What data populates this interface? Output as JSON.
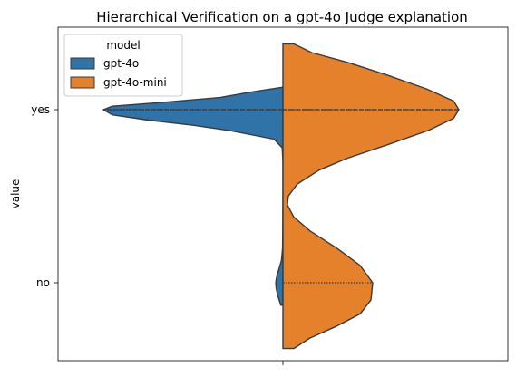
{
  "chart_data": {
    "type": "violin",
    "title": "Hierarchical Verification on a gpt-4o Judge explanation",
    "xlabel": "",
    "ylabel": "value",
    "categories": [
      "yes",
      "no"
    ],
    "split": true,
    "inner": "quartile",
    "legend": {
      "title": "model",
      "placement": "top-left",
      "entries": [
        {
          "name": "gpt-4o",
          "color": "#2f73a8"
        },
        {
          "name": "gpt-4o-mini",
          "color": "#e5812b"
        }
      ]
    },
    "series": [
      {
        "name": "gpt-4o",
        "side": "left",
        "color": "#2f73a8",
        "density": [
          {
            "v": -0.13,
            "w": 0.012
          },
          {
            "v": -0.07,
            "w": 0.03
          },
          {
            "v": -0.03,
            "w": 0.038
          },
          {
            "v": 0.0,
            "w": 0.04
          },
          {
            "v": 0.03,
            "w": 0.036
          },
          {
            "v": 0.07,
            "w": 0.025
          },
          {
            "v": 0.13,
            "w": 0.008
          },
          {
            "v": 0.2,
            "w": 0.002
          },
          {
            "v": 0.3,
            "w": 0.001
          },
          {
            "v": 0.5,
            "w": 0.0
          },
          {
            "v": 0.7,
            "w": 0.0
          },
          {
            "v": 0.78,
            "w": 0.004
          },
          {
            "v": 0.83,
            "w": 0.05
          },
          {
            "v": 0.88,
            "w": 0.3
          },
          {
            "v": 0.91,
            "w": 0.5
          },
          {
            "v": 0.94,
            "w": 0.75
          },
          {
            "v": 0.97,
            "w": 0.95
          },
          {
            "v": 1.0,
            "w": 1.0
          },
          {
            "v": 1.02,
            "w": 0.95
          },
          {
            "v": 1.04,
            "w": 0.7
          },
          {
            "v": 1.07,
            "w": 0.35
          },
          {
            "v": 1.1,
            "w": 0.19
          },
          {
            "v": 1.13,
            "w": 0.0
          }
        ],
        "quartiles": [
          1.0,
          1.0,
          1.0
        ]
      },
      {
        "name": "gpt-4o-mini",
        "side": "right",
        "color": "#e5812b",
        "density": [
          {
            "v": -0.38,
            "w": 0.0
          },
          {
            "v": -0.38,
            "w": 0.06
          },
          {
            "v": -0.32,
            "w": 0.15
          },
          {
            "v": -0.25,
            "w": 0.3
          },
          {
            "v": -0.18,
            "w": 0.43
          },
          {
            "v": -0.1,
            "w": 0.49
          },
          {
            "v": 0.0,
            "w": 0.5
          },
          {
            "v": 0.1,
            "w": 0.43
          },
          {
            "v": 0.2,
            "w": 0.3
          },
          {
            "v": 0.3,
            "w": 0.15
          },
          {
            "v": 0.38,
            "w": 0.06
          },
          {
            "v": 0.45,
            "w": 0.025
          },
          {
            "v": 0.5,
            "w": 0.03
          },
          {
            "v": 0.57,
            "w": 0.08
          },
          {
            "v": 0.65,
            "w": 0.2
          },
          {
            "v": 0.72,
            "w": 0.36
          },
          {
            "v": 0.8,
            "w": 0.59
          },
          {
            "v": 0.88,
            "w": 0.81
          },
          {
            "v": 0.95,
            "w": 0.95
          },
          {
            "v": 1.0,
            "w": 0.98
          },
          {
            "v": 1.05,
            "w": 0.95
          },
          {
            "v": 1.12,
            "w": 0.8
          },
          {
            "v": 1.2,
            "w": 0.58
          },
          {
            "v": 1.27,
            "w": 0.37
          },
          {
            "v": 1.33,
            "w": 0.16
          },
          {
            "v": 1.38,
            "w": 0.06
          },
          {
            "v": 1.38,
            "w": 0.0
          }
        ],
        "quartiles": [
          0.0,
          1.0,
          1.0
        ]
      }
    ],
    "ylim": [
      -0.45,
      1.45
    ]
  }
}
